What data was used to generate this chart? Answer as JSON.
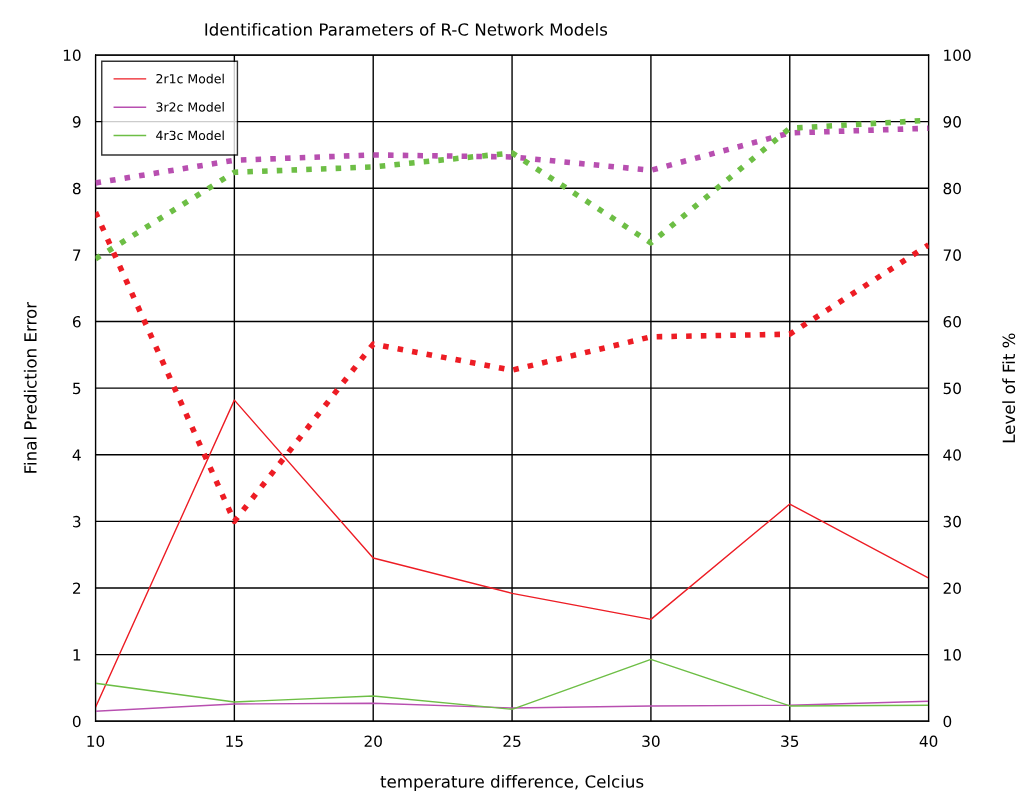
{
  "chart_data": {
    "type": "line",
    "title": "Identification Parameters of R-C Network Models",
    "xlabel": "temperature difference, Celcius",
    "ylabel": "Final Prediction Error",
    "y2label": "Level of Fit %",
    "x": [
      10,
      15,
      20,
      25,
      30,
      35,
      40
    ],
    "xlim": [
      10,
      40
    ],
    "xticks": [
      10,
      15,
      20,
      25,
      30,
      35,
      40
    ],
    "ylim": [
      0,
      10
    ],
    "yticks": [
      0,
      1,
      2,
      3,
      4,
      5,
      6,
      7,
      8,
      9,
      10
    ],
    "y2lim": [
      0,
      100
    ],
    "y2ticks": [
      0,
      10,
      20,
      30,
      40,
      50,
      60,
      70,
      80,
      90,
      100
    ],
    "grid": true,
    "legend": "top left",
    "marker": "none",
    "series": [
      {
        "name": "2r1c Model",
        "color": "#ed1c24",
        "line_style": "solid",
        "values": [
          0.21,
          4.82,
          2.45,
          1.92,
          1.53,
          3.26,
          2.15
        ]
      },
      {
        "name": "3r2c Model",
        "color": "#b84fb0",
        "line_style": "solid",
        "values": [
          0.15,
          0.26,
          0.27,
          0.2,
          0.23,
          0.24,
          0.3
        ]
      },
      {
        "name": "4r3c Model",
        "color": "#6dbe45",
        "line_style": "solid",
        "values": [
          0.57,
          0.29,
          0.38,
          0.18,
          0.93,
          0.23,
          0.24
        ]
      },
      {
        "color": "#ed1c24",
        "line_style": "dotted",
        "axis": "y2",
        "values": [
          76.4,
          30,
          56.6,
          52.7,
          57.7,
          58.1,
          71.5
        ]
      },
      {
        "color": "#b84fb0",
        "line_style": "dotted",
        "axis": "y2",
        "values": [
          80.8,
          84.2,
          85,
          84.7,
          82.7,
          88.3,
          89
        ]
      },
      {
        "color": "#6dbe45",
        "line_style": "dotted",
        "axis": "y2",
        "values": [
          69.4,
          82.4,
          83.2,
          85.3,
          71.8,
          89,
          90.2
        ]
      }
    ]
  }
}
